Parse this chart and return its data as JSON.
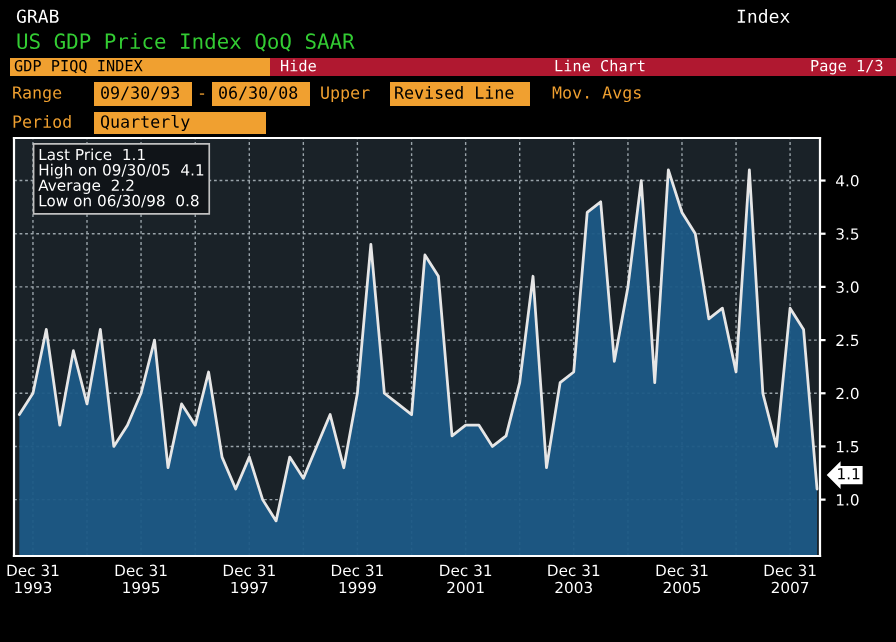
{
  "chart_data": {
    "type": "area",
    "title": "US GDP Price Index QoQ SAAR",
    "x": [
      "1993-09-30",
      "1993-12-31",
      "1994-03-31",
      "1994-06-30",
      "1994-09-30",
      "1994-12-31",
      "1995-03-31",
      "1995-06-30",
      "1995-09-30",
      "1995-12-31",
      "1996-03-31",
      "1996-06-30",
      "1996-09-30",
      "1996-12-31",
      "1997-03-31",
      "1997-06-30",
      "1997-09-30",
      "1997-12-31",
      "1998-03-31",
      "1998-06-30",
      "1998-09-30",
      "1998-12-31",
      "1999-03-31",
      "1999-06-30",
      "1999-09-30",
      "1999-12-31",
      "2000-03-31",
      "2000-06-30",
      "2000-09-30",
      "2000-12-31",
      "2001-03-31",
      "2001-06-30",
      "2001-09-30",
      "2001-12-31",
      "2002-03-31",
      "2002-06-30",
      "2002-09-30",
      "2002-12-31",
      "2003-03-31",
      "2003-06-30",
      "2003-09-30",
      "2003-12-31",
      "2004-03-31",
      "2004-06-30",
      "2004-09-30",
      "2004-12-31",
      "2005-03-31",
      "2005-06-30",
      "2005-09-30",
      "2005-12-31",
      "2006-03-31",
      "2006-06-30",
      "2006-09-30",
      "2006-12-31",
      "2007-03-31",
      "2007-06-30",
      "2007-09-30",
      "2007-12-31",
      "2008-03-31",
      "2008-06-30"
    ],
    "series": [
      {
        "color": "#1c5a86",
        "values": [
          1.8,
          2.0,
          2.6,
          1.7,
          2.4,
          1.9,
          2.6,
          1.5,
          1.7,
          2.0,
          2.5,
          1.3,
          1.9,
          1.7,
          2.2,
          1.4,
          1.1,
          1.4,
          1.0,
          0.8,
          1.4,
          1.2,
          1.5,
          1.8,
          1.3,
          2.0,
          3.4,
          2.0,
          1.9,
          1.8,
          3.3,
          3.1,
          1.6,
          1.7,
          1.7,
          1.5,
          1.6,
          2.1,
          3.1,
          1.3,
          2.1,
          2.2,
          3.7,
          3.8,
          2.3,
          3.0,
          4.0,
          2.1,
          4.1,
          3.7,
          3.5,
          2.7,
          2.8,
          2.2,
          4.1,
          2.0,
          1.5,
          2.8,
          2.6,
          1.1
        ]
      }
    ],
    "xlim": [
      "1993-08-25",
      "2008-07-20"
    ],
    "xticks": [
      {
        "value": "1993-12-31",
        "label": "Dec 31\n1993"
      },
      {
        "value": "1994-12-31",
        "label": null
      },
      {
        "value": "1995-12-31",
        "label": "Dec 31\n1995"
      },
      {
        "value": "1996-12-31",
        "label": null
      },
      {
        "value": "1997-12-31",
        "label": "Dec 31\n1997"
      },
      {
        "value": "1998-12-31",
        "label": null
      },
      {
        "value": "1999-12-31",
        "label": "Dec 31\n1999"
      },
      {
        "value": "2000-12-31",
        "label": null
      },
      {
        "value": "2001-12-31",
        "label": "Dec 31\n2001"
      },
      {
        "value": "2002-12-31",
        "label": null
      },
      {
        "value": "2003-12-31",
        "label": "Dec 31\n2003"
      },
      {
        "value": "2004-12-31",
        "label": null
      },
      {
        "value": "2005-12-31",
        "label": "Dec 31\n2005"
      },
      {
        "value": "2006-12-31",
        "label": null
      },
      {
        "value": "2007-12-31",
        "label": "Dec 31\n2007"
      }
    ],
    "ylim": [
      0.47,
      4.4
    ],
    "yticks": [
      {
        "value": 1.0,
        "label": "1.0"
      },
      {
        "value": 1.5,
        "label": "1.5"
      },
      {
        "value": 2.0,
        "label": "2.0"
      },
      {
        "value": 2.5,
        "label": "2.5"
      },
      {
        "value": 3.0,
        "label": "3.0"
      },
      {
        "value": 3.5,
        "label": "3.5"
      },
      {
        "value": 4.0,
        "label": "4.0"
      }
    ],
    "grid": true,
    "annotations": [
      "GRAB",
      "Index",
      "GDP PIQQ INDEX",
      "Hide",
      "Line Chart",
      "Page 1/3",
      "Range",
      "09/30/93",
      "-",
      "06/30/08",
      "Upper",
      "Revised Line",
      "Mov. Avgs",
      "Period",
      "Quarterly",
      "Last Price  1.1",
      "High on 09/30/05  4.1",
      "Average  2.2",
      "Low on 06/30/98  0.8",
      {
        "text": "1.1",
        "x": "2008-06-30",
        "y": 1.1
      }
    ]
  }
}
